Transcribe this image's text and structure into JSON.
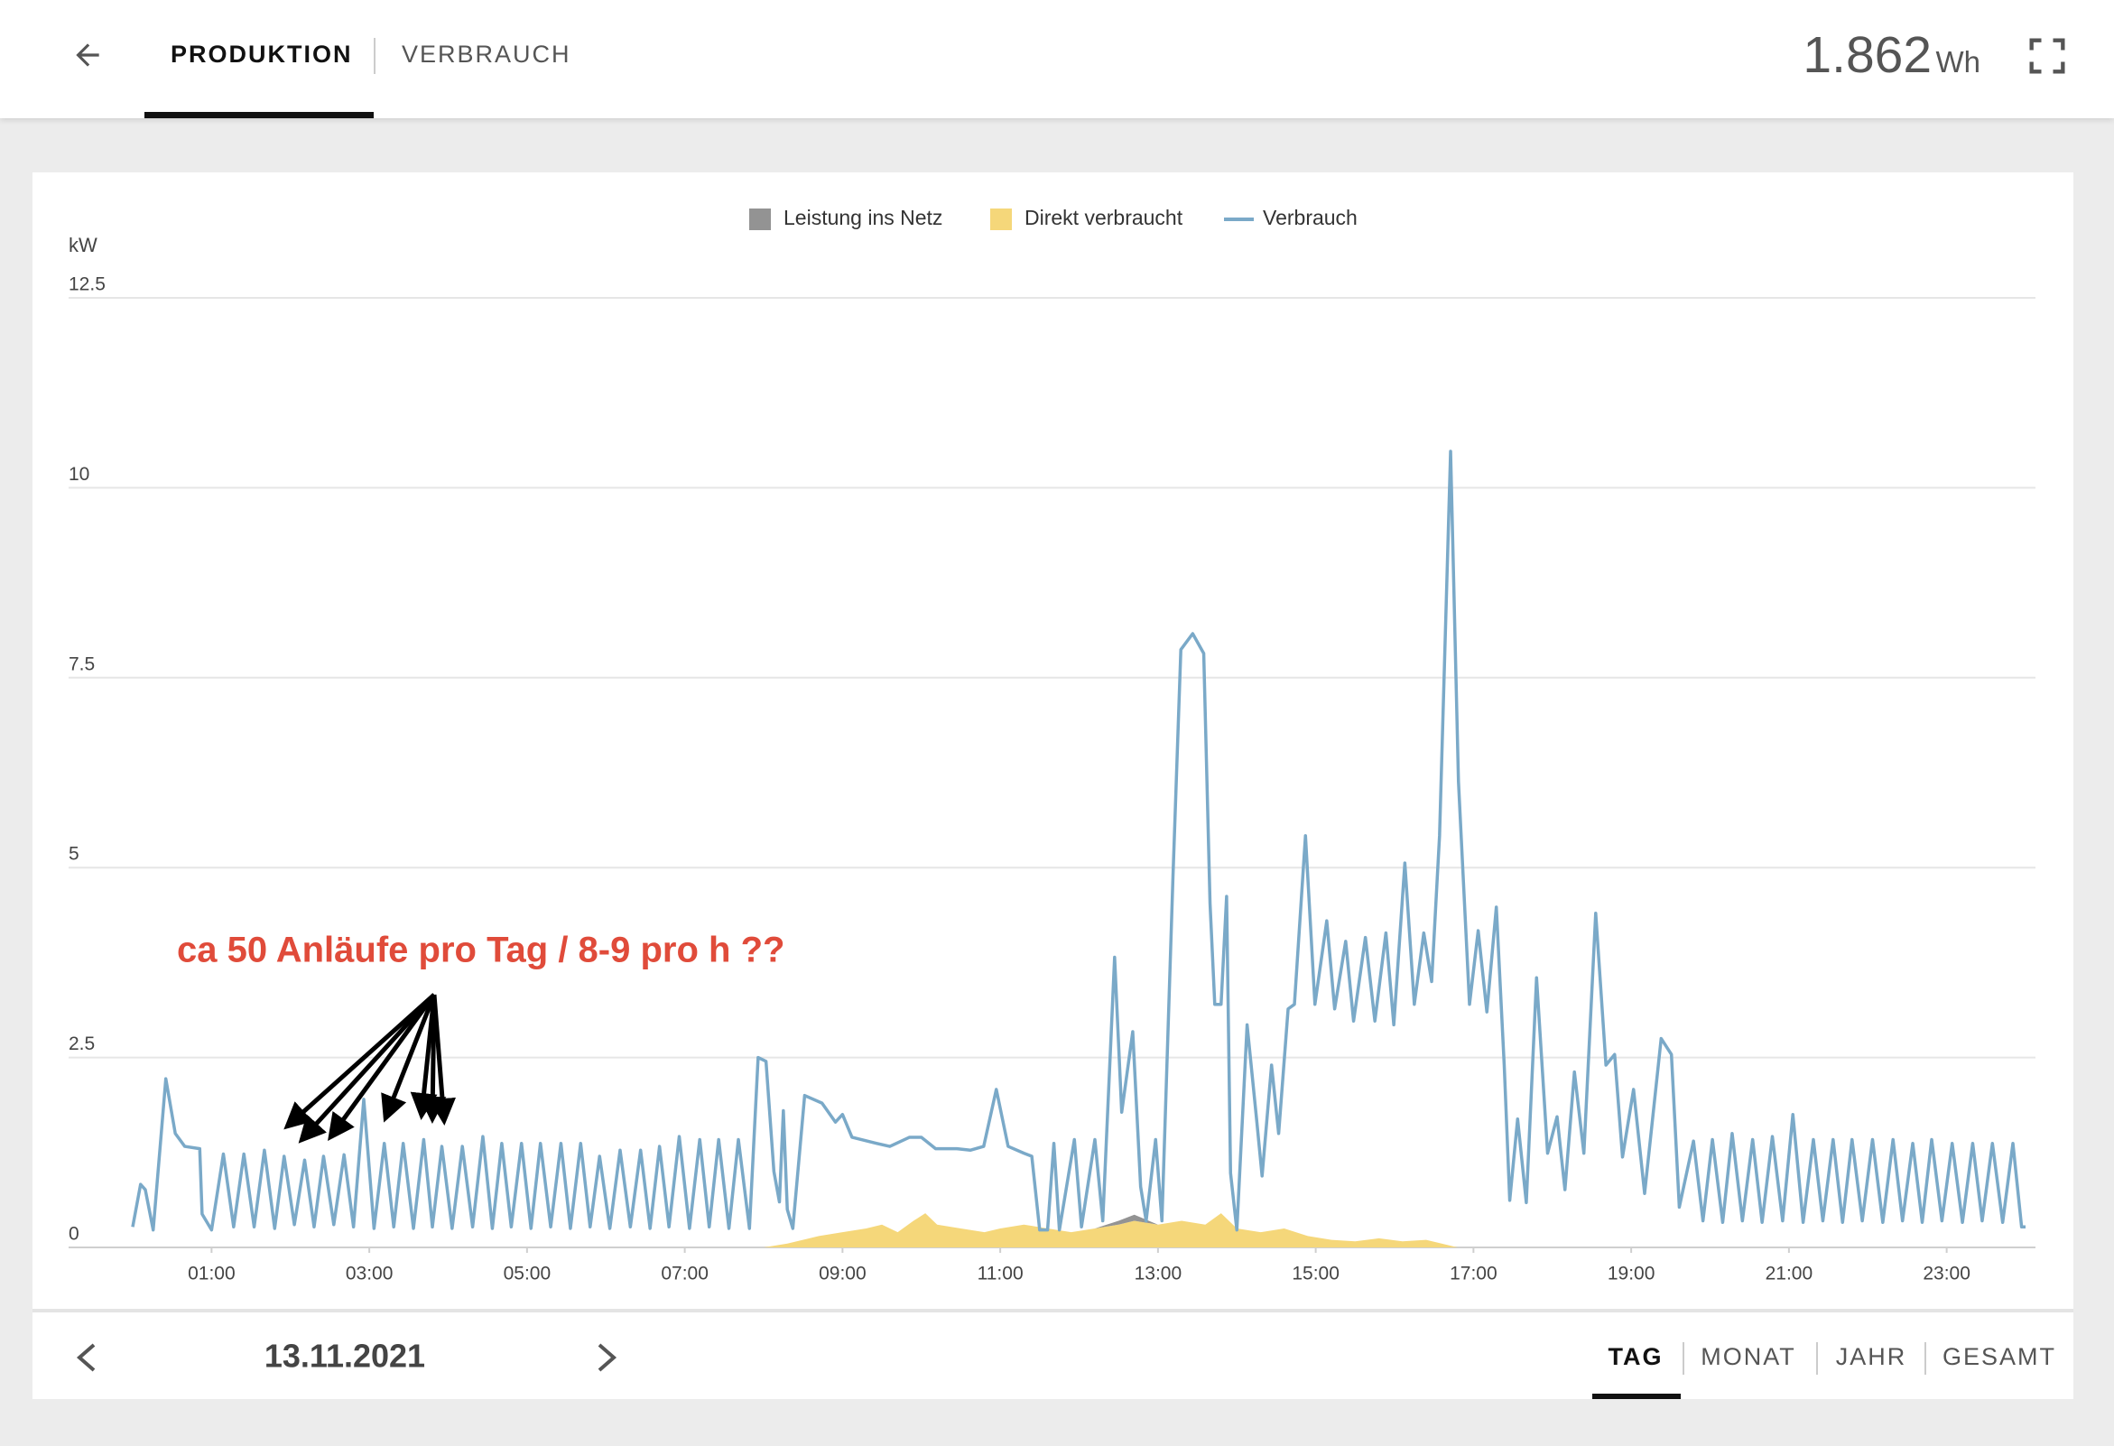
{
  "header": {
    "tabs": [
      "PRODUKTION",
      "VERBRAUCH"
    ],
    "total": "1.862",
    "total_unit": "Wh"
  },
  "chart_data": {
    "type": "line",
    "y_label": "kW",
    "annotation": "ca 50 Anläufe pro Tag / 8-9 pro h ??",
    "xlim": [
      0,
      24
    ],
    "xticks": [
      {
        "value": 1,
        "label": "01:00"
      },
      {
        "value": 3,
        "label": "03:00"
      },
      {
        "value": 5,
        "label": "05:00"
      },
      {
        "value": 7,
        "label": "07:00"
      },
      {
        "value": 9,
        "label": "09:00"
      },
      {
        "value": 11,
        "label": "11:00"
      },
      {
        "value": 13,
        "label": "13:00"
      },
      {
        "value": 15,
        "label": "15:00"
      },
      {
        "value": 17,
        "label": "17:00"
      },
      {
        "value": 19,
        "label": "19:00"
      },
      {
        "value": 21,
        "label": "21:00"
      },
      {
        "value": 23,
        "label": "23:00"
      }
    ],
    "ylim": [
      0,
      12.5
    ],
    "yticks": [
      0,
      2.5,
      5,
      7.5,
      10,
      12.5
    ],
    "grid": true,
    "legend": "top",
    "stacked": true,
    "series": [
      {
        "name": "Leistung ins Netz",
        "color": "#939393",
        "kind": "area",
        "x": [
          8.0,
          8.3,
          8.7,
          9.0,
          9.3,
          9.5,
          9.7,
          9.9,
          10.05,
          10.2,
          10.5,
          10.8,
          11.0,
          11.3,
          11.6,
          11.9,
          12.2,
          12.5,
          12.7,
          13.0,
          13.3,
          13.6,
          13.8,
          14.0,
          14.3,
          14.6,
          14.9,
          15.2,
          15.5,
          15.8,
          16.1,
          16.4,
          16.8
        ],
        "values": [
          0,
          0,
          0,
          0,
          0,
          0,
          0,
          0,
          0,
          0,
          0,
          0,
          0,
          0,
          0,
          0,
          0,
          0.05,
          0.08,
          0,
          0,
          0,
          0,
          0,
          0,
          0,
          0,
          0,
          0,
          0,
          0,
          0,
          0
        ]
      },
      {
        "name": "Direkt verbraucht",
        "color": "#f5d77a",
        "kind": "area",
        "x": [
          8.0,
          8.3,
          8.7,
          9.0,
          9.3,
          9.5,
          9.7,
          9.9,
          10.05,
          10.2,
          10.5,
          10.8,
          11.0,
          11.3,
          11.6,
          11.9,
          12.2,
          12.5,
          12.7,
          13.0,
          13.3,
          13.6,
          13.8,
          14.0,
          14.3,
          14.6,
          14.9,
          15.2,
          15.5,
          15.8,
          16.1,
          16.4,
          16.8
        ],
        "values": [
          0,
          0.05,
          0.15,
          0.2,
          0.25,
          0.3,
          0.2,
          0.35,
          0.45,
          0.3,
          0.25,
          0.2,
          0.25,
          0.3,
          0.25,
          0.2,
          0.25,
          0.3,
          0.35,
          0.3,
          0.35,
          0.3,
          0.45,
          0.25,
          0.2,
          0.25,
          0.15,
          0.1,
          0.08,
          0.12,
          0.08,
          0.1,
          0
        ]
      },
      {
        "name": "Verbrauch",
        "color": "#7aa9c8",
        "kind": "line",
        "x": [
          0,
          0.1,
          0.16,
          0.26,
          0.42,
          0.54,
          0.66,
          0.85,
          0.88,
          1.0,
          1.15,
          1.28,
          1.41,
          1.54,
          1.67,
          1.8,
          1.92,
          2.05,
          2.18,
          2.3,
          2.42,
          2.55,
          2.68,
          2.8,
          2.93,
          3.06,
          3.19,
          3.31,
          3.43,
          3.56,
          3.69,
          3.8,
          3.92,
          4.05,
          4.18,
          4.31,
          4.44,
          4.56,
          4.68,
          4.8,
          4.93,
          5.05,
          5.17,
          5.3,
          5.43,
          5.55,
          5.68,
          5.8,
          5.92,
          6.05,
          6.18,
          6.31,
          6.44,
          6.56,
          6.68,
          6.8,
          6.93,
          7.06,
          7.19,
          7.31,
          7.43,
          7.56,
          7.68,
          7.82,
          7.93,
          8.03,
          8.13,
          8.2,
          8.25,
          8.3,
          8.37,
          8.52,
          8.74,
          8.91,
          9.0,
          9.12,
          9.43,
          9.6,
          9.85,
          10.0,
          10.18,
          10.45,
          10.62,
          10.79,
          10.95,
          11.1,
          11.3,
          11.4,
          11.5,
          11.6,
          11.68,
          11.75,
          11.94,
          12.03,
          12.2,
          12.3,
          12.45,
          12.54,
          12.68,
          12.78,
          12.85,
          12.97,
          13.05,
          13.19,
          13.29,
          13.44,
          13.58,
          13.66,
          13.72,
          13.8,
          13.87,
          13.92,
          14.0,
          14.13,
          14.25,
          14.32,
          14.44,
          14.53,
          14.65,
          14.73,
          14.87,
          14.99,
          15.14,
          15.24,
          15.38,
          15.48,
          15.63,
          15.75,
          15.89,
          15.99,
          16.13,
          16.25,
          16.37,
          16.47,
          16.57,
          16.71,
          16.81,
          16.95,
          17.06,
          17.17,
          17.29,
          17.39,
          17.46,
          17.56,
          17.67,
          17.8,
          17.94,
          18.06,
          18.16,
          18.28,
          18.4,
          18.55,
          18.68,
          18.79,
          18.89,
          19.03,
          19.17,
          19.38,
          19.51,
          19.61,
          19.79,
          19.91,
          20.03,
          20.16,
          20.28,
          20.41,
          20.54,
          20.66,
          20.79,
          20.92,
          21.05,
          21.18,
          21.31,
          21.43,
          21.56,
          21.68,
          21.8,
          21.93,
          22.06,
          22.19,
          22.32,
          22.44,
          22.57,
          22.69,
          22.81,
          22.94,
          23.07,
          23.2,
          23.33,
          23.45,
          23.58,
          23.71,
          23.84,
          23.95,
          24.0
        ],
        "values": [
          0.27,
          0.83,
          0.76,
          0.23,
          2.22,
          1.5,
          1.33,
          1.3,
          0.44,
          0.23,
          1.23,
          0.27,
          1.23,
          0.27,
          1.28,
          0.25,
          1.2,
          0.3,
          1.15,
          0.27,
          1.2,
          0.3,
          1.22,
          0.27,
          1.95,
          0.25,
          1.37,
          0.27,
          1.37,
          0.25,
          1.42,
          0.27,
          1.33,
          0.25,
          1.33,
          0.27,
          1.46,
          0.25,
          1.37,
          0.27,
          1.37,
          0.25,
          1.37,
          0.27,
          1.37,
          0.25,
          1.37,
          0.27,
          1.2,
          0.25,
          1.28,
          0.27,
          1.28,
          0.25,
          1.33,
          0.27,
          1.46,
          0.25,
          1.42,
          0.27,
          1.42,
          0.25,
          1.42,
          0.25,
          2.5,
          2.45,
          1.0,
          0.6,
          1.8,
          0.5,
          0.25,
          2.0,
          1.9,
          1.65,
          1.75,
          1.45,
          1.37,
          1.33,
          1.45,
          1.45,
          1.3,
          1.3,
          1.28,
          1.33,
          2.08,
          1.33,
          1.24,
          1.2,
          0.23,
          0.23,
          1.37,
          0.23,
          1.42,
          0.27,
          1.42,
          0.35,
          3.82,
          1.78,
          2.84,
          0.8,
          0.35,
          1.42,
          0.35,
          4.88,
          7.87,
          8.08,
          7.82,
          4.53,
          3.2,
          3.2,
          4.62,
          0.98,
          0.23,
          2.93,
          1.69,
          0.94,
          2.4,
          1.5,
          3.14,
          3.2,
          5.42,
          3.2,
          4.3,
          3.14,
          4.03,
          2.98,
          4.08,
          2.98,
          4.14,
          2.93,
          5.06,
          3.2,
          4.14,
          3.5,
          5.42,
          10.48,
          6.13,
          3.2,
          4.17,
          3.1,
          4.48,
          2.4,
          0.62,
          1.69,
          0.59,
          3.55,
          1.24,
          1.72,
          0.76,
          2.31,
          1.24,
          4.4,
          2.4,
          2.54,
          1.19,
          2.08,
          0.71,
          2.75,
          2.54,
          0.53,
          1.4,
          0.35,
          1.42,
          0.33,
          1.5,
          0.35,
          1.42,
          0.33,
          1.46,
          0.35,
          1.75,
          0.33,
          1.42,
          0.35,
          1.42,
          0.33,
          1.42,
          0.35,
          1.42,
          0.33,
          1.42,
          0.35,
          1.37,
          0.33,
          1.42,
          0.35,
          1.37,
          0.33,
          1.37,
          0.35,
          1.37,
          0.33,
          1.37,
          0.27,
          0.27
        ]
      }
    ]
  },
  "footer": {
    "date": "13.11.2021",
    "periods": [
      "TAG",
      "MONAT",
      "JAHR",
      "GESAMT"
    ]
  }
}
